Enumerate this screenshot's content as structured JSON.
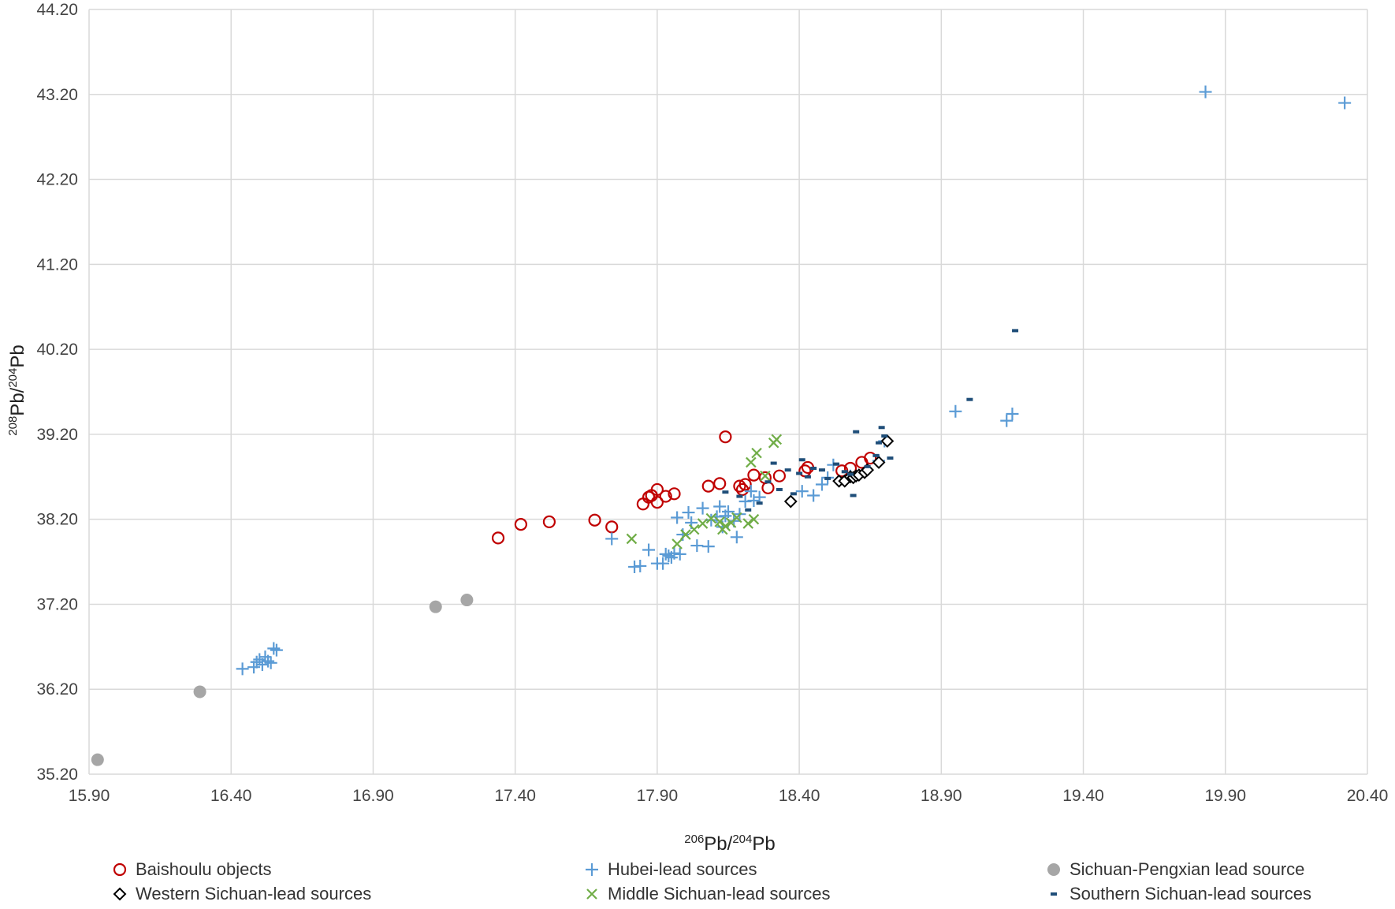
{
  "chart_data": {
    "type": "scatter",
    "title": "",
    "xlabel": {
      "sup1": "206",
      "base1": "Pb/",
      "sup2": "204",
      "base2": "Pb"
    },
    "ylabel": {
      "sup1": "208",
      "base1": "Pb/",
      "sup2": "204",
      "base2": "Pb"
    },
    "xlim": [
      15.9,
      20.4
    ],
    "ylim": [
      35.2,
      44.2
    ],
    "xticks": [
      "15.90",
      "16.40",
      "16.90",
      "17.40",
      "17.90",
      "18.40",
      "18.90",
      "19.40",
      "19.90",
      "20.40"
    ],
    "yticks": [
      "35.20",
      "36.20",
      "37.20",
      "38.20",
      "39.20",
      "40.20",
      "41.20",
      "42.20",
      "43.20",
      "44.20"
    ],
    "grid": true,
    "legend_position": "bottom",
    "series": [
      {
        "name": "Baishoulu objects",
        "marker": "circle-open",
        "color": "#c00000",
        "points": [
          [
            17.34,
            37.98
          ],
          [
            17.42,
            38.14
          ],
          [
            17.52,
            38.17
          ],
          [
            17.68,
            38.19
          ],
          [
            17.74,
            38.11
          ],
          [
            17.85,
            38.38
          ],
          [
            17.87,
            38.46
          ],
          [
            17.88,
            38.48
          ],
          [
            17.9,
            38.4
          ],
          [
            17.9,
            38.55
          ],
          [
            17.93,
            38.47
          ],
          [
            17.96,
            38.5
          ],
          [
            18.08,
            38.59
          ],
          [
            18.12,
            38.62
          ],
          [
            18.14,
            39.17
          ],
          [
            18.19,
            38.59
          ],
          [
            18.2,
            38.55
          ],
          [
            18.21,
            38.61
          ],
          [
            18.24,
            38.72
          ],
          [
            18.28,
            38.69
          ],
          [
            18.29,
            38.57
          ],
          [
            18.33,
            38.71
          ],
          [
            18.42,
            38.77
          ],
          [
            18.43,
            38.81
          ],
          [
            18.55,
            38.77
          ],
          [
            18.58,
            38.8
          ],
          [
            18.62,
            38.87
          ],
          [
            18.65,
            38.92
          ]
        ]
      },
      {
        "name": "Hubei-lead sources",
        "marker": "plus",
        "color": "#5b9bd5",
        "points": [
          [
            16.44,
            36.44
          ],
          [
            16.48,
            36.46
          ],
          [
            16.49,
            36.52
          ],
          [
            16.5,
            36.55
          ],
          [
            16.51,
            36.49
          ],
          [
            16.52,
            36.58
          ],
          [
            16.53,
            36.53
          ],
          [
            16.54,
            36.51
          ],
          [
            16.55,
            36.68
          ],
          [
            16.56,
            36.66
          ],
          [
            17.74,
            37.97
          ],
          [
            17.82,
            37.64
          ],
          [
            17.84,
            37.65
          ],
          [
            17.87,
            37.84
          ],
          [
            17.9,
            37.68
          ],
          [
            17.92,
            37.68
          ],
          [
            17.93,
            37.79
          ],
          [
            17.94,
            37.77
          ],
          [
            17.95,
            37.75
          ],
          [
            17.96,
            37.8
          ],
          [
            17.97,
            38.22
          ],
          [
            17.98,
            37.79
          ],
          [
            17.99,
            38.02
          ],
          [
            18.01,
            38.28
          ],
          [
            18.02,
            38.16
          ],
          [
            18.04,
            37.89
          ],
          [
            18.06,
            38.33
          ],
          [
            18.08,
            37.88
          ],
          [
            18.09,
            38.19
          ],
          [
            18.11,
            38.23
          ],
          [
            18.12,
            38.35
          ],
          [
            18.13,
            38.11
          ],
          [
            18.14,
            38.24
          ],
          [
            18.15,
            38.29
          ],
          [
            18.17,
            38.18
          ],
          [
            18.18,
            37.99
          ],
          [
            18.19,
            38.26
          ],
          [
            18.21,
            38.41
          ],
          [
            18.23,
            38.53
          ],
          [
            18.24,
            38.42
          ],
          [
            18.26,
            38.46
          ],
          [
            18.41,
            38.53
          ],
          [
            18.45,
            38.48
          ],
          [
            18.48,
            38.61
          ],
          [
            18.5,
            38.69
          ],
          [
            18.52,
            38.84
          ],
          [
            18.58,
            38.71
          ],
          [
            18.68,
            38.89
          ],
          [
            18.7,
            39.12
          ],
          [
            18.95,
            39.47
          ],
          [
            19.13,
            39.36
          ],
          [
            19.15,
            39.44
          ],
          [
            19.83,
            43.23
          ],
          [
            20.32,
            43.1
          ]
        ]
      },
      {
        "name": "Sichuan-Pengxian lead source",
        "marker": "circle-filled",
        "color": "#a6a6a6",
        "points": [
          [
            15.93,
            35.37
          ],
          [
            16.29,
            36.17
          ],
          [
            17.12,
            37.17
          ],
          [
            17.23,
            37.25
          ]
        ]
      },
      {
        "name": "Western Sichuan-lead sources",
        "marker": "diamond-open",
        "color": "#000000",
        "points": [
          [
            18.37,
            38.41
          ],
          [
            18.54,
            38.65
          ],
          [
            18.56,
            38.65
          ],
          [
            18.58,
            38.7
          ],
          [
            18.59,
            38.69
          ],
          [
            18.6,
            38.71
          ],
          [
            18.61,
            38.72
          ],
          [
            18.63,
            38.75
          ],
          [
            18.64,
            38.78
          ],
          [
            18.68,
            38.87
          ],
          [
            18.71,
            39.12
          ]
        ]
      },
      {
        "name": "Middle Sichuan-lead sources",
        "marker": "x",
        "color": "#70ad47",
        "points": [
          [
            17.81,
            37.97
          ],
          [
            17.97,
            37.91
          ],
          [
            18.0,
            38.02
          ],
          [
            18.03,
            38.08
          ],
          [
            18.06,
            38.15
          ],
          [
            18.09,
            38.21
          ],
          [
            18.12,
            38.17
          ],
          [
            18.13,
            38.08
          ],
          [
            18.14,
            38.12
          ],
          [
            18.16,
            38.16
          ],
          [
            18.18,
            38.22
          ],
          [
            18.22,
            38.15
          ],
          [
            18.24,
            38.2
          ],
          [
            18.23,
            38.87
          ],
          [
            18.25,
            38.98
          ],
          [
            18.28,
            38.71
          ],
          [
            18.31,
            39.1
          ],
          [
            18.32,
            39.14
          ]
        ]
      },
      {
        "name": "Southern Sichuan-lead sources",
        "marker": "dash",
        "color": "#1f4e79",
        "points": [
          [
            18.14,
            38.52
          ],
          [
            18.19,
            38.47
          ],
          [
            18.22,
            38.31
          ],
          [
            18.26,
            38.39
          ],
          [
            18.29,
            38.64
          ],
          [
            18.31,
            38.86
          ],
          [
            18.33,
            38.55
          ],
          [
            18.36,
            38.78
          ],
          [
            18.38,
            38.5
          ],
          [
            18.4,
            38.74
          ],
          [
            18.41,
            38.9
          ],
          [
            18.43,
            38.7
          ],
          [
            18.45,
            38.8
          ],
          [
            18.48,
            38.78
          ],
          [
            18.5,
            38.68
          ],
          [
            18.53,
            38.85
          ],
          [
            18.56,
            38.76
          ],
          [
            18.58,
            38.73
          ],
          [
            18.59,
            38.48
          ],
          [
            18.6,
            39.23
          ],
          [
            18.64,
            38.82
          ],
          [
            18.67,
            38.95
          ],
          [
            18.68,
            39.1
          ],
          [
            18.69,
            39.28
          ],
          [
            18.7,
            39.18
          ],
          [
            18.72,
            38.92
          ],
          [
            19.0,
            39.61
          ],
          [
            19.16,
            40.42
          ]
        ]
      }
    ]
  }
}
